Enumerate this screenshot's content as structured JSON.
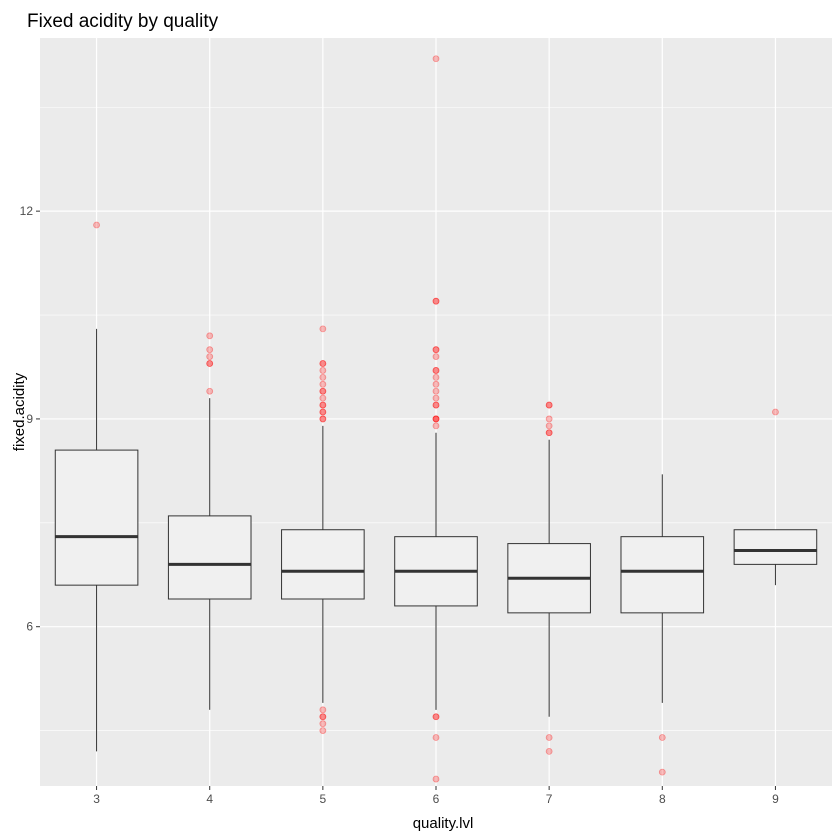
{
  "chart_data": {
    "type": "boxplot",
    "title": "Fixed acidity by quality",
    "xlabel": "quality.lvl",
    "ylabel": "fixed.acidity",
    "categories": [
      "3",
      "4",
      "5",
      "6",
      "7",
      "8",
      "9"
    ],
    "ylim": [
      3.7,
      14.5
    ],
    "yticks": [
      6,
      9,
      12
    ],
    "grid": true,
    "colors": {
      "panel": "#ebebeb",
      "grid_major": "#ffffff",
      "box_fill": "#f0f0f0",
      "box_line": "#333333",
      "outlier": "#ff0000"
    },
    "boxes": [
      {
        "category": "3",
        "whisker_low": 4.2,
        "q1": 6.6,
        "median": 7.3,
        "q3": 8.55,
        "whisker_high": 10.3,
        "outliers": [
          11.8
        ]
      },
      {
        "category": "4",
        "whisker_low": 4.8,
        "q1": 6.4,
        "median": 6.9,
        "q3": 7.6,
        "whisker_high": 9.3,
        "outliers": [
          9.4,
          9.8,
          9.8,
          9.9,
          10.0,
          10.2
        ]
      },
      {
        "category": "5",
        "whisker_low": 4.9,
        "q1": 6.4,
        "median": 6.8,
        "q3": 7.4,
        "whisker_high": 8.9,
        "outliers": [
          4.5,
          4.6,
          4.7,
          4.7,
          4.8,
          9.0,
          9.0,
          9.1,
          9.1,
          9.2,
          9.2,
          9.3,
          9.4,
          9.4,
          9.5,
          9.6,
          9.7,
          9.8,
          9.8,
          10.3
        ]
      },
      {
        "category": "6",
        "whisker_low": 4.8,
        "q1": 6.3,
        "median": 6.8,
        "q3": 7.3,
        "whisker_high": 8.8,
        "outliers": [
          3.8,
          4.4,
          4.7,
          4.7,
          8.9,
          9.0,
          9.0,
          9.0,
          9.2,
          9.2,
          9.3,
          9.4,
          9.5,
          9.6,
          9.7,
          9.7,
          9.9,
          10.0,
          10.0,
          10.7,
          10.7,
          14.2
        ]
      },
      {
        "category": "7",
        "whisker_low": 4.7,
        "q1": 6.2,
        "median": 6.7,
        "q3": 7.2,
        "whisker_high": 8.7,
        "outliers": [
          4.2,
          4.4,
          8.8,
          8.8,
          8.9,
          9.0,
          9.2,
          9.2
        ]
      },
      {
        "category": "8",
        "whisker_low": 4.9,
        "q1": 6.2,
        "median": 6.8,
        "q3": 7.3,
        "whisker_high": 8.2,
        "outliers": [
          3.9,
          4.4
        ]
      },
      {
        "category": "9",
        "whisker_low": 6.6,
        "q1": 6.9,
        "median": 7.1,
        "q3": 7.4,
        "whisker_high": 7.4,
        "outliers": [
          9.1
        ]
      }
    ]
  }
}
